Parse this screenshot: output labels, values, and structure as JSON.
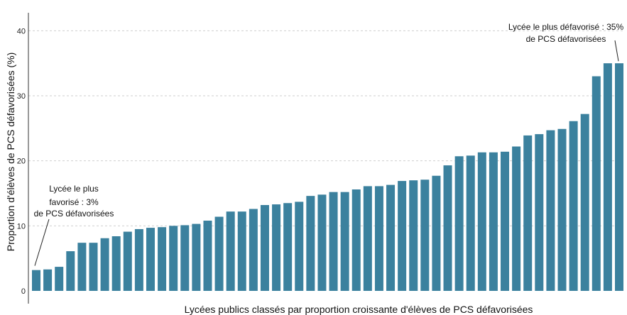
{
  "chart_data": {
    "type": "bar",
    "title": "",
    "xlabel": "Lycées publics classés par proportion croissante d'élèves de PCS défavorisées",
    "ylabel": "Proportion d'élèves de PCS défavorisées (%)",
    "ylim": [
      0,
      42
    ],
    "yticks": [
      0,
      10,
      20,
      30,
      40
    ],
    "grid": true,
    "legend": "none",
    "bar_color": "#3b819e",
    "values": [
      3.2,
      3.3,
      3.7,
      6.1,
      7.4,
      7.4,
      8.1,
      8.4,
      9.1,
      9.5,
      9.7,
      9.8,
      10.0,
      10.1,
      10.3,
      10.8,
      11.4,
      12.2,
      12.2,
      12.6,
      13.2,
      13.3,
      13.5,
      13.7,
      14.6,
      14.8,
      15.2,
      15.2,
      15.6,
      16.1,
      16.1,
      16.3,
      16.9,
      17.0,
      17.1,
      17.7,
      19.3,
      20.7,
      20.8,
      21.3,
      21.3,
      21.4,
      22.2,
      23.9,
      24.1,
      24.7,
      24.9,
      26.1,
      27.2,
      33.0,
      35.0,
      35.0
    ],
    "annotations": [
      {
        "lines": [
          "Lycée le plus",
          "favorisé : 3%",
          "de PCS défavorisées"
        ],
        "target_index": 0
      },
      {
        "lines": [
          "Lycée le plus défavorisé : 35%",
          "de PCS défavorisées"
        ],
        "target_index": 51
      }
    ]
  }
}
